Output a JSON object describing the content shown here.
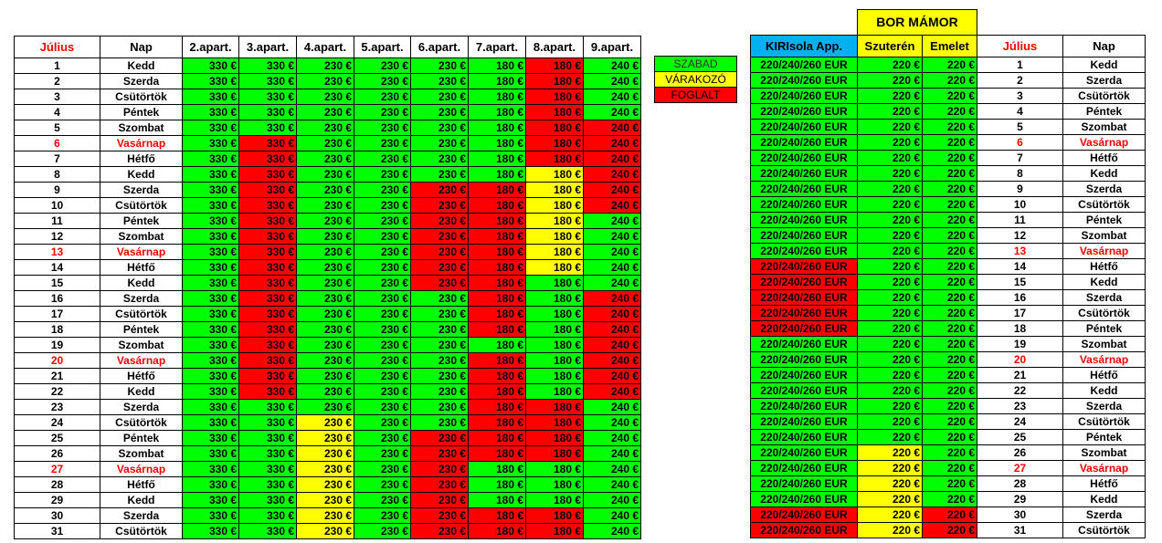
{
  "headers": {
    "month": "Július",
    "day": "Nap",
    "apartments": [
      "2.apart.",
      "3.apart.",
      "4.apart.",
      "5.apart.",
      "6.apart.",
      "7.apart.",
      "8.apart.",
      "9.apart."
    ]
  },
  "legend": {
    "free": "SZABAD",
    "waiting": "VÁRAKOZÓ",
    "booked": "FOGLALT"
  },
  "right": {
    "title": "BOR  MÁMOR",
    "kiri_header": "KIRIsola App.",
    "szuteren_header": "Szuterén",
    "emelet_header": "Emelet",
    "month": "Július",
    "day": "Nap"
  },
  "status_colors": {
    "g": "#00ff00",
    "f": "#ff0000",
    "y": "#ffff00"
  },
  "rows": [
    {
      "d": "1",
      "n": "Kedd",
      "sun": false,
      "p": [
        "330 €",
        "330 €",
        "230 €",
        "230 €",
        "230 €",
        "180 €",
        "180 €",
        "240 €"
      ],
      "s": [
        "g",
        "g",
        "g",
        "g",
        "g",
        "g",
        "f",
        "g"
      ],
      "k": "220/240/260 EUR",
      "ks": "g",
      "sz": "220 €",
      "szs": "g",
      "em": "220 €",
      "ems": "g"
    },
    {
      "d": "2",
      "n": "Szerda",
      "sun": false,
      "p": [
        "330 €",
        "330 €",
        "230 €",
        "230 €",
        "230 €",
        "180 €",
        "180 €",
        "240 €"
      ],
      "s": [
        "g",
        "g",
        "g",
        "g",
        "g",
        "g",
        "f",
        "g"
      ],
      "k": "220/240/260 EUR",
      "ks": "g",
      "sz": "220 €",
      "szs": "g",
      "em": "220 €",
      "ems": "g"
    },
    {
      "d": "3",
      "n": "Csütörtök",
      "sun": false,
      "p": [
        "330 €",
        "330 €",
        "230 €",
        "230 €",
        "230 €",
        "180 €",
        "180 €",
        "240 €"
      ],
      "s": [
        "g",
        "g",
        "g",
        "g",
        "g",
        "g",
        "f",
        "g"
      ],
      "k": "220/240/260 EUR",
      "ks": "g",
      "sz": "220 €",
      "szs": "g",
      "em": "220 €",
      "ems": "g"
    },
    {
      "d": "4",
      "n": "Péntek",
      "sun": false,
      "p": [
        "330 €",
        "330 €",
        "230 €",
        "230 €",
        "230 €",
        "180 €",
        "180 €",
        "240 €"
      ],
      "s": [
        "g",
        "g",
        "g",
        "g",
        "g",
        "g",
        "f",
        "g"
      ],
      "k": "220/240/260 EUR",
      "ks": "g",
      "sz": "220 €",
      "szs": "g",
      "em": "220 €",
      "ems": "g"
    },
    {
      "d": "5",
      "n": "Szombat",
      "sun": false,
      "p": [
        "330 €",
        "330 €",
        "230 €",
        "230 €",
        "230 €",
        "180 €",
        "180 €",
        "240 €"
      ],
      "s": [
        "g",
        "g",
        "g",
        "g",
        "g",
        "g",
        "f",
        "f"
      ],
      "k": "220/240/260 EUR",
      "ks": "g",
      "sz": "220 €",
      "szs": "g",
      "em": "220 €",
      "ems": "g"
    },
    {
      "d": "6",
      "n": "Vasárnap",
      "sun": true,
      "p": [
        "330 €",
        "330 €",
        "230 €",
        "230 €",
        "230 €",
        "180 €",
        "180 €",
        "240 €"
      ],
      "s": [
        "g",
        "f",
        "g",
        "g",
        "g",
        "g",
        "f",
        "f"
      ],
      "k": "220/240/260 EUR",
      "ks": "g",
      "sz": "220 €",
      "szs": "g",
      "em": "220 €",
      "ems": "g"
    },
    {
      "d": "7",
      "n": "Hétfő",
      "sun": false,
      "p": [
        "330 €",
        "330 €",
        "230 €",
        "230 €",
        "230 €",
        "180 €",
        "180 €",
        "240 €"
      ],
      "s": [
        "g",
        "f",
        "g",
        "g",
        "g",
        "g",
        "f",
        "f"
      ],
      "k": "220/240/260 EUR",
      "ks": "g",
      "sz": "220 €",
      "szs": "g",
      "em": "220 €",
      "ems": "g"
    },
    {
      "d": "8",
      "n": "Kedd",
      "sun": false,
      "p": [
        "330 €",
        "330 €",
        "230 €",
        "230 €",
        "230 €",
        "180 €",
        "180 €",
        "240 €"
      ],
      "s": [
        "g",
        "f",
        "g",
        "g",
        "g",
        "g",
        "y",
        "f"
      ],
      "k": "220/240/260 EUR",
      "ks": "g",
      "sz": "220 €",
      "szs": "g",
      "em": "220 €",
      "ems": "g"
    },
    {
      "d": "9",
      "n": "Szerda",
      "sun": false,
      "p": [
        "330 €",
        "330 €",
        "230 €",
        "230 €",
        "230 €",
        "180 €",
        "180 €",
        "240 €"
      ],
      "s": [
        "g",
        "f",
        "g",
        "g",
        "f",
        "f",
        "y",
        "f"
      ],
      "k": "220/240/260 EUR",
      "ks": "g",
      "sz": "220 €",
      "szs": "g",
      "em": "220 €",
      "ems": "g"
    },
    {
      "d": "10",
      "n": "Csütörtök",
      "sun": false,
      "p": [
        "330 €",
        "330 €",
        "230 €",
        "230 €",
        "230 €",
        "180 €",
        "180 €",
        "240 €"
      ],
      "s": [
        "g",
        "f",
        "g",
        "g",
        "f",
        "f",
        "y",
        "f"
      ],
      "k": "220/240/260 EUR",
      "ks": "g",
      "sz": "220 €",
      "szs": "g",
      "em": "220 €",
      "ems": "g"
    },
    {
      "d": "11",
      "n": "Péntek",
      "sun": false,
      "p": [
        "330 €",
        "330 €",
        "230 €",
        "230 €",
        "230 €",
        "180 €",
        "180 €",
        "240 €"
      ],
      "s": [
        "g",
        "f",
        "g",
        "g",
        "f",
        "f",
        "y",
        "g"
      ],
      "k": "220/240/260 EUR",
      "ks": "g",
      "sz": "220 €",
      "szs": "g",
      "em": "220 €",
      "ems": "g"
    },
    {
      "d": "12",
      "n": "Szombat",
      "sun": false,
      "p": [
        "330 €",
        "330 €",
        "230 €",
        "230 €",
        "230 €",
        "180 €",
        "180 €",
        "240 €"
      ],
      "s": [
        "g",
        "f",
        "g",
        "g",
        "f",
        "f",
        "y",
        "g"
      ],
      "k": "220/240/260 EUR",
      "ks": "g",
      "sz": "220 €",
      "szs": "g",
      "em": "220 €",
      "ems": "g"
    },
    {
      "d": "13",
      "n": "Vasárnap",
      "sun": true,
      "p": [
        "330 €",
        "330 €",
        "230 €",
        "230 €",
        "230 €",
        "180 €",
        "180 €",
        "240 €"
      ],
      "s": [
        "g",
        "f",
        "g",
        "g",
        "f",
        "f",
        "y",
        "g"
      ],
      "k": "220/240/260 EUR",
      "ks": "g",
      "sz": "220 €",
      "szs": "g",
      "em": "220 €",
      "ems": "g"
    },
    {
      "d": "14",
      "n": "Hétfő",
      "sun": false,
      "p": [
        "330 €",
        "330 €",
        "230 €",
        "230 €",
        "230 €",
        "180 €",
        "180 €",
        "240 €"
      ],
      "s": [
        "g",
        "f",
        "g",
        "g",
        "f",
        "f",
        "y",
        "g"
      ],
      "k": "220/240/260 EUR",
      "ks": "f",
      "sz": "220 €",
      "szs": "g",
      "em": "220 €",
      "ems": "g"
    },
    {
      "d": "15",
      "n": "Kedd",
      "sun": false,
      "p": [
        "330 €",
        "330 €",
        "230 €",
        "230 €",
        "230 €",
        "180 €",
        "180 €",
        "240 €"
      ],
      "s": [
        "g",
        "f",
        "g",
        "g",
        "f",
        "f",
        "g",
        "g"
      ],
      "k": "220/240/260 EUR",
      "ks": "f",
      "sz": "220 €",
      "szs": "g",
      "em": "220 €",
      "ems": "g"
    },
    {
      "d": "16",
      "n": "Szerda",
      "sun": false,
      "p": [
        "330 €",
        "330 €",
        "230 €",
        "230 €",
        "230 €",
        "180 €",
        "180 €",
        "240 €"
      ],
      "s": [
        "g",
        "f",
        "g",
        "g",
        "g",
        "f",
        "g",
        "f"
      ],
      "k": "220/240/260 EUR",
      "ks": "f",
      "sz": "220 €",
      "szs": "g",
      "em": "220 €",
      "ems": "g"
    },
    {
      "d": "17",
      "n": "Csütörtök",
      "sun": false,
      "p": [
        "330 €",
        "330 €",
        "230 €",
        "230 €",
        "230 €",
        "180 €",
        "180 €",
        "240 €"
      ],
      "s": [
        "g",
        "f",
        "g",
        "g",
        "g",
        "f",
        "g",
        "f"
      ],
      "k": "220/240/260 EUR",
      "ks": "f",
      "sz": "220 €",
      "szs": "g",
      "em": "220 €",
      "ems": "g"
    },
    {
      "d": "18",
      "n": "Péntek",
      "sun": false,
      "p": [
        "330 €",
        "330 €",
        "230 €",
        "230 €",
        "230 €",
        "180 €",
        "180 €",
        "240 €"
      ],
      "s": [
        "g",
        "f",
        "g",
        "g",
        "g",
        "f",
        "g",
        "f"
      ],
      "k": "220/240/260 EUR",
      "ks": "f",
      "sz": "220 €",
      "szs": "g",
      "em": "220 €",
      "ems": "g"
    },
    {
      "d": "19",
      "n": "Szombat",
      "sun": false,
      "p": [
        "330 €",
        "330 €",
        "230 €",
        "230 €",
        "230 €",
        "180 €",
        "180 €",
        "240 €"
      ],
      "s": [
        "g",
        "f",
        "g",
        "g",
        "g",
        "g",
        "g",
        "f"
      ],
      "k": "220/240/260 EUR",
      "ks": "g",
      "sz": "220 €",
      "szs": "g",
      "em": "220 €",
      "ems": "g"
    },
    {
      "d": "20",
      "n": "Vasárnap",
      "sun": true,
      "p": [
        "330 €",
        "330 €",
        "230 €",
        "230 €",
        "230 €",
        "180 €",
        "180 €",
        "240 €"
      ],
      "s": [
        "g",
        "f",
        "g",
        "g",
        "g",
        "f",
        "g",
        "f"
      ],
      "k": "220/240/260 EUR",
      "ks": "g",
      "sz": "220 €",
      "szs": "g",
      "em": "220 €",
      "ems": "g"
    },
    {
      "d": "21",
      "n": "Hétfő",
      "sun": false,
      "p": [
        "330 €",
        "330 €",
        "230 €",
        "230 €",
        "230 €",
        "180 €",
        "180 €",
        "240 €"
      ],
      "s": [
        "g",
        "f",
        "g",
        "g",
        "g",
        "f",
        "g",
        "f"
      ],
      "k": "220/240/260 EUR",
      "ks": "g",
      "sz": "220 €",
      "szs": "g",
      "em": "220 €",
      "ems": "g"
    },
    {
      "d": "22",
      "n": "Kedd",
      "sun": false,
      "p": [
        "330 €",
        "330 €",
        "230 €",
        "230 €",
        "230 €",
        "180 €",
        "180 €",
        "240 €"
      ],
      "s": [
        "g",
        "f",
        "g",
        "g",
        "g",
        "f",
        "g",
        "f"
      ],
      "k": "220/240/260 EUR",
      "ks": "g",
      "sz": "220 €",
      "szs": "g",
      "em": "220 €",
      "ems": "g"
    },
    {
      "d": "23",
      "n": "Szerda",
      "sun": false,
      "p": [
        "330 €",
        "330 €",
        "230 €",
        "230 €",
        "230 €",
        "180 €",
        "180 €",
        "240 €"
      ],
      "s": [
        "g",
        "g",
        "g",
        "g",
        "g",
        "f",
        "f",
        "g"
      ],
      "k": "220/240/260 EUR",
      "ks": "g",
      "sz": "220 €",
      "szs": "g",
      "em": "220 €",
      "ems": "g"
    },
    {
      "d": "24",
      "n": "Csütörtök",
      "sun": false,
      "p": [
        "330 €",
        "330 €",
        "230 €",
        "230 €",
        "230 €",
        "180 €",
        "180 €",
        "240 €"
      ],
      "s": [
        "g",
        "g",
        "y",
        "g",
        "g",
        "f",
        "f",
        "g"
      ],
      "k": "220/240/260 EUR",
      "ks": "g",
      "sz": "220 €",
      "szs": "g",
      "em": "220 €",
      "ems": "g"
    },
    {
      "d": "25",
      "n": "Péntek",
      "sun": false,
      "p": [
        "330 €",
        "330 €",
        "230 €",
        "230 €",
        "230 €",
        "180 €",
        "180 €",
        "240 €"
      ],
      "s": [
        "g",
        "g",
        "y",
        "g",
        "f",
        "f",
        "f",
        "g"
      ],
      "k": "220/240/260 EUR",
      "ks": "g",
      "sz": "220 €",
      "szs": "g",
      "em": "220 €",
      "ems": "g"
    },
    {
      "d": "26",
      "n": "Szombat",
      "sun": false,
      "p": [
        "330 €",
        "330 €",
        "230 €",
        "230 €",
        "230 €",
        "180 €",
        "180 €",
        "240 €"
      ],
      "s": [
        "g",
        "g",
        "y",
        "g",
        "f",
        "f",
        "f",
        "g"
      ],
      "k": "220/240/260 EUR",
      "ks": "g",
      "sz": "220 €",
      "szs": "y",
      "em": "220 €",
      "ems": "g"
    },
    {
      "d": "27",
      "n": "Vasárnap",
      "sun": true,
      "p": [
        "330 €",
        "330 €",
        "230 €",
        "230 €",
        "230 €",
        "180 €",
        "180 €",
        "240 €"
      ],
      "s": [
        "g",
        "g",
        "y",
        "g",
        "f",
        "g",
        "g",
        "g"
      ],
      "k": "220/240/260 EUR",
      "ks": "g",
      "sz": "220 €",
      "szs": "y",
      "em": "220 €",
      "ems": "g"
    },
    {
      "d": "28",
      "n": "Hétfő",
      "sun": false,
      "p": [
        "330 €",
        "330 €",
        "230 €",
        "230 €",
        "230 €",
        "180 €",
        "180 €",
        "240 €"
      ],
      "s": [
        "g",
        "g",
        "y",
        "g",
        "f",
        "g",
        "g",
        "g"
      ],
      "k": "220/240/260 EUR",
      "ks": "g",
      "sz": "220 €",
      "szs": "y",
      "em": "220 €",
      "ems": "g"
    },
    {
      "d": "29",
      "n": "Kedd",
      "sun": false,
      "p": [
        "330 €",
        "330 €",
        "230 €",
        "230 €",
        "230 €",
        "180 €",
        "180 €",
        "240 €"
      ],
      "s": [
        "g",
        "g",
        "y",
        "g",
        "f",
        "g",
        "g",
        "g"
      ],
      "k": "220/240/260 EUR",
      "ks": "g",
      "sz": "220 €",
      "szs": "y",
      "em": "220 €",
      "ems": "g"
    },
    {
      "d": "30",
      "n": "Szerda",
      "sun": false,
      "p": [
        "330 €",
        "330 €",
        "230 €",
        "230 €",
        "230 €",
        "180 €",
        "180 €",
        "240 €"
      ],
      "s": [
        "g",
        "g",
        "y",
        "g",
        "f",
        "f",
        "f",
        "g"
      ],
      "k": "220/240/260 EUR",
      "ks": "f",
      "sz": "220 €",
      "szs": "y",
      "em": "220 €",
      "ems": "f"
    },
    {
      "d": "31",
      "n": "Csütörtök",
      "sun": false,
      "p": [
        "330 €",
        "330 €",
        "230 €",
        "230 €",
        "230 €",
        "180 €",
        "180 €",
        "240 €"
      ],
      "s": [
        "g",
        "g",
        "y",
        "g",
        "f",
        "f",
        "f",
        "g"
      ],
      "k": "220/240/260 EUR",
      "ks": "f",
      "sz": "220 €",
      "szs": "y",
      "em": "220 €",
      "ems": "f"
    }
  ]
}
